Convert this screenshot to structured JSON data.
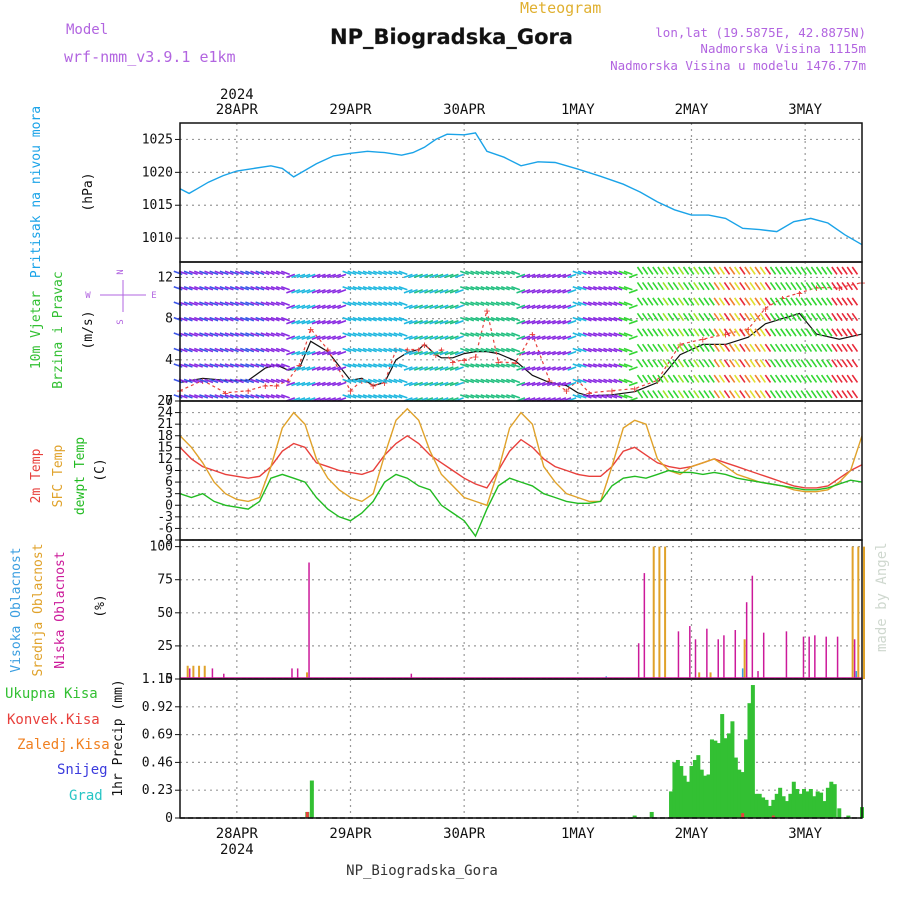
{
  "header": {
    "meteogram_label": "Meteogram",
    "title": "NP_Biogradska_Gora",
    "model_label": "Model",
    "model_name": "wrf-nmm_v3.9.1 e1km",
    "lonlat": "lon,lat (19.5875E, 42.8875N)",
    "elevation": "Nadmorska Visina 1115m",
    "model_elevation": "Nadmorska Visina u modelu 1476.77m",
    "watermark": "made by Angel",
    "footer": "NP_Biogradska_Gora"
  },
  "colors": {
    "pressure": "#1aa3e8",
    "temp2m": "#e8403c",
    "sfc_temp": "#e0a22a",
    "dewpoint": "#22bb22",
    "high_cloud": "#3a9ee0",
    "mid_cloud": "#e0a22a",
    "low_cloud": "#cc1a9a",
    "total_precip": "#33c033",
    "conv_precip": "#e8403c",
    "frozen_precip": "#f08020",
    "snow": "#3b3bdd",
    "graupel": "#27c5c5",
    "label_purple": "#b265e0",
    "title_gold": "#e0b030"
  },
  "time_axis": {
    "year": "2024",
    "days": [
      "28APR",
      "29APR",
      "30APR",
      "1MAY",
      "2MAY",
      "3MAY"
    ],
    "start_day_offset": -0.5,
    "end_day_offset": 5.5
  },
  "chart_data": [
    {
      "id": "pressure",
      "type": "line",
      "ylabel": [
        "Pritisak na nivou mora",
        "(hPa)"
      ],
      "ylim": [
        1008.5,
        1027.5
      ],
      "yticks": [
        1010,
        1015,
        1020,
        1025
      ],
      "grid": true,
      "x": [
        -0.5,
        -0.42,
        -0.35,
        -0.25,
        -0.12,
        0,
        0.15,
        0.3,
        0.4,
        0.5,
        0.6,
        0.7,
        0.85,
        1.0,
        1.15,
        1.3,
        1.45,
        1.55,
        1.65,
        1.75,
        1.85,
        2.0,
        2.1,
        2.2,
        2.35,
        2.5,
        2.65,
        2.8,
        3.0,
        3.2,
        3.4,
        3.55,
        3.7,
        3.85,
        4.0,
        4.15,
        4.3,
        4.45,
        4.6,
        4.75,
        4.9,
        5.05,
        5.2,
        5.35,
        5.5
      ],
      "series": [
        {
          "values": [
            1017.5,
            1016.8,
            1017.5,
            1018.5,
            1019.5,
            1020.2,
            1020.6,
            1021.0,
            1020.6,
            1019.3,
            1020.3,
            1021.3,
            1022.5,
            1022.9,
            1023.2,
            1023.0,
            1022.6,
            1023.0,
            1023.8,
            1025.0,
            1025.8,
            1025.7,
            1026.0,
            1023.2,
            1022.3,
            1021.0,
            1021.6,
            1021.5,
            1020.5,
            1019.4,
            1018.2,
            1017.0,
            1015.5,
            1014.3,
            1013.5,
            1013.5,
            1013.0,
            1011.5,
            1011.3,
            1011.0,
            1012.5,
            1013.0,
            1012.3,
            1010.5,
            1009.0
          ]
        }
      ]
    },
    {
      "id": "wind",
      "type": "line",
      "ylabel": [
        "10m Vjetar",
        "Brzina i Pravac",
        "(m/s)"
      ],
      "compass_labels": [
        "N",
        "E",
        "S",
        "W"
      ],
      "ylim": [
        0,
        13.5
      ],
      "yticks": [
        0,
        4,
        8,
        12
      ],
      "grid": true,
      "x": [
        -0.5,
        -0.3,
        -0.1,
        0.1,
        0.25,
        0.35,
        0.45,
        0.55,
        0.65,
        0.8,
        1.0,
        1.1,
        1.2,
        1.3,
        1.4,
        1.5,
        1.6,
        1.65,
        1.75,
        1.8,
        1.9,
        2.0,
        2.1,
        2.2,
        2.3,
        2.45,
        2.6,
        2.75,
        2.9,
        3.0,
        3.1,
        3.3,
        3.5,
        3.7,
        3.9,
        4.1,
        4.3,
        4.5,
        4.65,
        4.8,
        4.95,
        5.1,
        5.3,
        5.5
      ],
      "series": [
        {
          "values": [
            1.8,
            2.2,
            2.0,
            2.0,
            3.2,
            3.5,
            3.0,
            3.2,
            5.8,
            4.8,
            2.0,
            2.2,
            1.5,
            1.8,
            4.0,
            4.7,
            5.0,
            5.5,
            4.5,
            4.2,
            4.2,
            4.6,
            4.8,
            4.8,
            4.6,
            3.9,
            2.5,
            1.8,
            1.5,
            0.8,
            0.5,
            0.6,
            0.9,
            1.8,
            4.5,
            5.5,
            5.5,
            6.2,
            7.5,
            8.0,
            8.5,
            6.5,
            6.0,
            6.5
          ]
        },
        {
          "values": [
            1.0,
            2.0,
            0.8,
            1.0,
            1.5,
            1.5,
            2.0,
            3.5,
            7.0,
            5.0,
            1.0,
            2.0,
            1.5,
            1.8,
            5.0,
            5.0,
            5.0,
            5.5,
            4.5,
            5.0,
            3.8,
            4.0,
            4.3,
            8.8,
            3.8,
            3.7,
            6.5,
            2.0,
            1.0,
            2.0,
            0.8,
            1.0,
            1.2,
            2.0,
            5.5,
            6.0,
            6.5,
            7.0,
            9.0,
            10.0,
            10.5,
            11.0,
            11.0,
            11.5
          ]
        }
      ]
    },
    {
      "id": "temperature",
      "type": "line",
      "ylabel": [
        "2m Temp",
        "SFC Temp",
        "dewpt Temp",
        "(C)"
      ],
      "ylim": [
        -9,
        27
      ],
      "yticks": [
        -9,
        -6,
        -3,
        0,
        3,
        6,
        9,
        12,
        15,
        18,
        21,
        24,
        27
      ],
      "grid": true,
      "x": [
        -0.5,
        -0.4,
        -0.3,
        -0.2,
        -0.1,
        0,
        0.1,
        0.2,
        0.3,
        0.4,
        0.5,
        0.6,
        0.7,
        0.8,
        0.9,
        1.0,
        1.1,
        1.2,
        1.3,
        1.4,
        1.5,
        1.6,
        1.7,
        1.8,
        1.9,
        2.0,
        2.1,
        2.2,
        2.3,
        2.4,
        2.5,
        2.6,
        2.7,
        2.8,
        2.9,
        3.0,
        3.1,
        3.2,
        3.3,
        3.4,
        3.5,
        3.6,
        3.7,
        3.8,
        3.9,
        4.0,
        4.1,
        4.2,
        4.3,
        4.4,
        4.5,
        4.6,
        4.7,
        4.8,
        4.9,
        5.0,
        5.1,
        5.2,
        5.3,
        5.4,
        5.5
      ],
      "series": [
        {
          "name": "2m Temp",
          "values": [
            15,
            12,
            10,
            9,
            8,
            7.5,
            7,
            7.5,
            10,
            14,
            16,
            15,
            11,
            10,
            9,
            8.5,
            8,
            9,
            13,
            16,
            18,
            16,
            13,
            11,
            9,
            7,
            5.5,
            4.5,
            9,
            14,
            17,
            15,
            12,
            10,
            9,
            8,
            7.5,
            7.5,
            10,
            14,
            15,
            13,
            11,
            10,
            9.5,
            10,
            11,
            12,
            11,
            10,
            9,
            8,
            7,
            6,
            5,
            4.5,
            4.5,
            5,
            7,
            9,
            10.5
          ]
        },
        {
          "name": "SFC Temp",
          "values": [
            18,
            15,
            11,
            6,
            3,
            1.5,
            1,
            2,
            10,
            20,
            24,
            21,
            12,
            7,
            4,
            2,
            1,
            3,
            13,
            22,
            25,
            22,
            14,
            8,
            5,
            2,
            1,
            0,
            9,
            20,
            24,
            21,
            10,
            6,
            3,
            2,
            1,
            1,
            10,
            20,
            22,
            21,
            12,
            9,
            8,
            10,
            11,
            12,
            10,
            8,
            7,
            6,
            5.5,
            5,
            4,
            3.5,
            3.5,
            4,
            6,
            9,
            18
          ]
        },
        {
          "name": "dewpt Temp",
          "values": [
            3,
            2,
            3,
            1,
            0,
            -0.5,
            -1,
            1,
            7,
            8,
            7,
            6,
            2,
            -1,
            -3,
            -4,
            -2,
            1,
            6,
            8,
            7,
            5,
            4,
            0,
            -2,
            -4,
            -8,
            -1,
            5,
            7,
            6,
            5,
            3,
            2,
            1,
            0.5,
            0.5,
            1,
            5,
            7,
            7.5,
            7,
            8,
            9,
            8.5,
            8.5,
            8,
            8.5,
            8,
            7,
            6.5,
            6,
            5.5,
            5,
            4.5,
            4,
            4,
            4.5,
            5.5,
            6.5,
            6
          ]
        }
      ]
    },
    {
      "id": "cloud",
      "type": "bar",
      "ylabel": [
        "Visoka Oblacnost",
        "Srednja Oblacnost",
        "Niska Oblacnost",
        "(%)"
      ],
      "ylim": [
        0,
        105
      ],
      "yticks": [
        0,
        25,
        50,
        75,
        100
      ],
      "grid": true,
      "series": [
        {
          "name": "Visoka Oblacnost",
          "x": [
            3.25,
            4.45,
            5.45
          ],
          "values": [
            2,
            8,
            6
          ]
        },
        {
          "name": "Srednja Oblacnost",
          "x": [
            -0.45,
            -0.4,
            -0.35,
            -0.3,
            0.6,
            3.65,
            3.7,
            3.75,
            4.05,
            4.15,
            4.45,
            5.4,
            5.45,
            5.5
          ],
          "values": [
            10,
            10,
            10,
            10,
            5,
            100,
            100,
            100,
            5,
            5,
            30,
            100,
            100,
            100
          ]
        },
        {
          "name": "Niska Oblacnost",
          "x": [
            -0.45,
            -0.25,
            -0.15,
            0.45,
            0.5,
            0.6,
            1.5,
            3.5,
            3.55,
            3.85,
            3.95,
            4.0,
            4.1,
            4.2,
            4.25,
            4.35,
            4.45,
            4.5,
            4.55,
            4.6,
            4.8,
            4.95,
            5.0,
            5.05,
            5.15,
            5.25,
            5.4
          ],
          "values": [
            8,
            8,
            4,
            8,
            8,
            88,
            4,
            27,
            80,
            36,
            40,
            30,
            38,
            30,
            33,
            37,
            58,
            78,
            6,
            35,
            36,
            32,
            32,
            33,
            32,
            32,
            30
          ]
        }
      ]
    },
    {
      "id": "precip",
      "type": "bar",
      "ylabel": [
        "1hr Precip (mm)"
      ],
      "legend_labels": [
        "Ukupna Kisa",
        "Konvek.Kisa",
        "Zaledj.Kisa",
        "Snijeg",
        "Grad"
      ],
      "ylim": [
        0,
        1.15
      ],
      "yticks": [
        0,
        0.23,
        0.46,
        0.69,
        0.92,
        1.15
      ],
      "grid": true,
      "series": [
        {
          "name": "Ukupna Kisa",
          "x": [
            0.62,
            0.66,
            3.5,
            3.65,
            3.82,
            3.85,
            3.88,
            3.91,
            3.94,
            3.97,
            4.0,
            4.03,
            4.06,
            4.09,
            4.12,
            4.15,
            4.18,
            4.21,
            4.24,
            4.27,
            4.3,
            4.33,
            4.36,
            4.39,
            4.42,
            4.45,
            4.48,
            4.51,
            4.54,
            4.57,
            4.6,
            4.63,
            4.66,
            4.69,
            4.72,
            4.75,
            4.78,
            4.81,
            4.84,
            4.87,
            4.9,
            4.93,
            4.96,
            4.99,
            5.02,
            5.05,
            5.08,
            5.11,
            5.14,
            5.17,
            5.2,
            5.23,
            5.26,
            5.3,
            5.38,
            5.5
          ],
          "values": [
            0.05,
            0.31,
            0.02,
            0.05,
            0.22,
            0.46,
            0.48,
            0.43,
            0.35,
            0.3,
            0.43,
            0.48,
            0.52,
            0.4,
            0.35,
            0.36,
            0.65,
            0.64,
            0.62,
            0.86,
            0.66,
            0.7,
            0.8,
            0.5,
            0.4,
            0.38,
            0.65,
            0.95,
            1.1,
            0.2,
            0.2,
            0.17,
            0.15,
            0.1,
            0.15,
            0.2,
            0.25,
            0.18,
            0.14,
            0.2,
            0.3,
            0.24,
            0.2,
            0.24,
            0.22,
            0.24,
            0.18,
            0.22,
            0.21,
            0.14,
            0.25,
            0.3,
            0.28,
            0.08,
            0.02,
            0.09
          ]
        },
        {
          "name": "Konvek.Kisa",
          "x": [
            0.62,
            4.45,
            4.72
          ],
          "values": [
            0.05,
            0.04,
            0.02
          ]
        }
      ]
    }
  ]
}
